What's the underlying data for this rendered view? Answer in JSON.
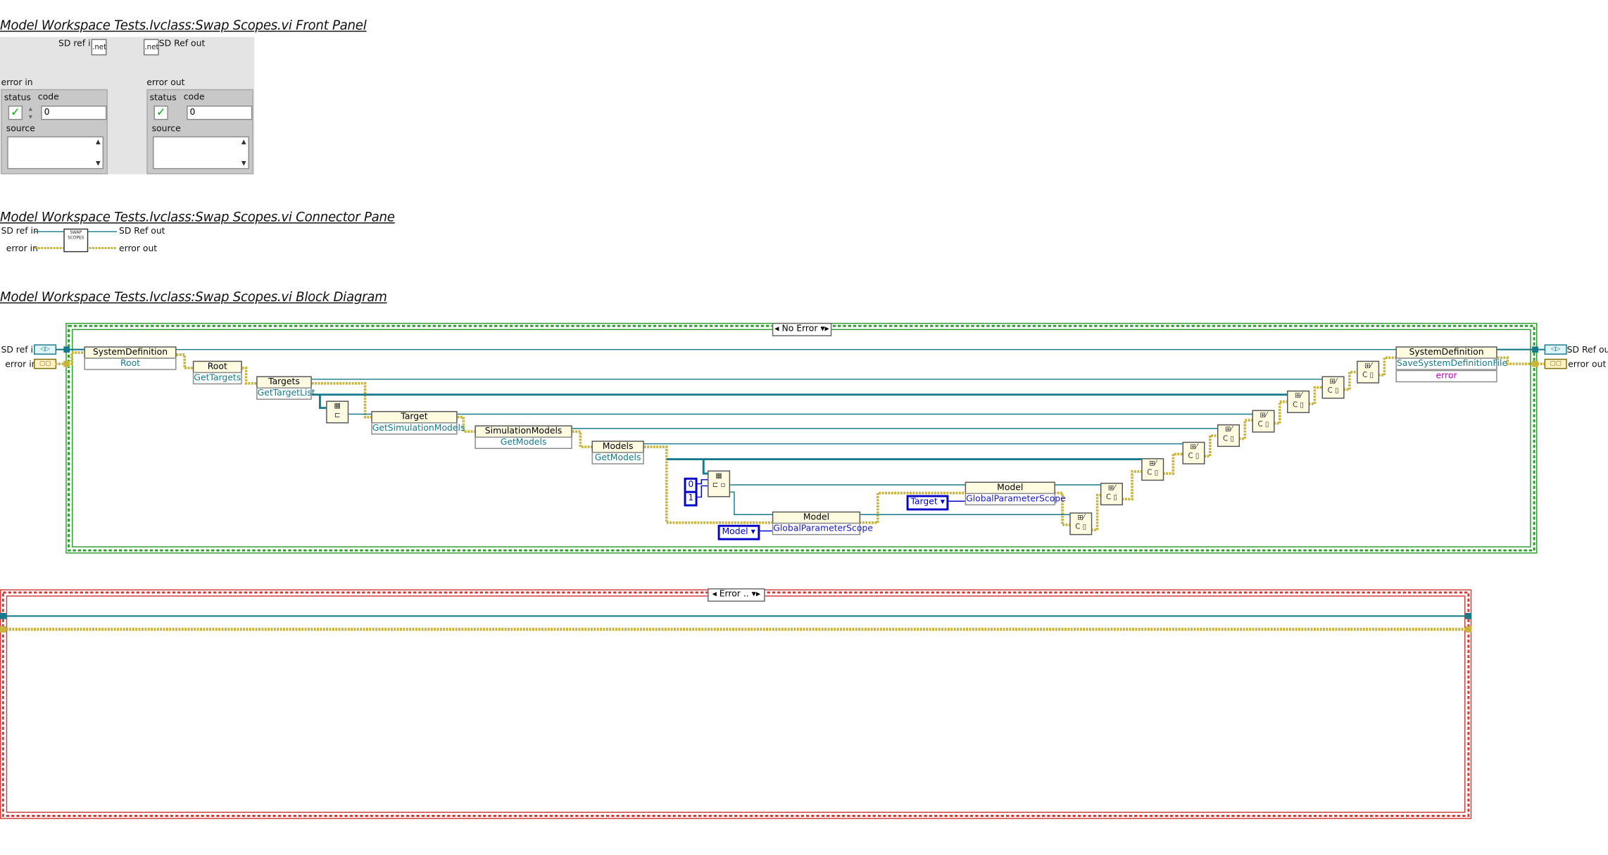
{
  "front_panel": {
    "title": "Model Workspace Tests.lvclass:Swap Scopes.vi Front Panel",
    "sd_ref_in_label": "SD ref in",
    "sd_ref_out_label": "SD Ref out",
    "net_icon_text": ".net",
    "error_in": {
      "label": "error in",
      "status_label": "status",
      "code_label": "code",
      "code_value": "0",
      "source_label": "source"
    },
    "error_out": {
      "label": "error out",
      "status_label": "status",
      "code_label": "code",
      "code_value": "0",
      "source_label": "source"
    }
  },
  "connector_pane": {
    "title": "Model Workspace Tests.lvclass:Swap Scopes.vi Connector Pane",
    "left_top": "SD ref in",
    "left_bottom": "error in",
    "right_top": "SD Ref out",
    "right_bottom": "error out",
    "icon_text": "SWAP SCOPES"
  },
  "block_diagram": {
    "title": "Model Workspace Tests.lvclass:Swap Scopes.vi Block Diagram",
    "case_selector": "No Error",
    "error_case_selector": "Error ..",
    "sd_ref_in": "SD ref in",
    "error_in": "error in",
    "sd_ref_out": "SD Ref out",
    "error_out": "error out",
    "nodes": {
      "system_definition_1": {
        "class": "SystemDefinition",
        "prop": "Root"
      },
      "root": {
        "class": "Root",
        "prop": "GetTargets"
      },
      "targets": {
        "class": "Targets",
        "prop": "GetTargetList"
      },
      "target": {
        "class": "Target",
        "prop": "GetSimulationModels"
      },
      "simulation_models": {
        "class": "SimulationModels",
        "prop": "GetModels"
      },
      "models": {
        "class": "Models",
        "prop": "GetModels"
      },
      "model_1": {
        "class": "Model",
        "prop": "GlobalParameterScope"
      },
      "model_2": {
        "class": "Model",
        "prop": "GlobalParameterScope"
      },
      "system_definition_2": {
        "class": "SystemDefinition",
        "prop1": "SaveSystemDefinitionFile",
        "prop2": "error"
      }
    },
    "constants": {
      "index_0": "0",
      "index_1": "1",
      "enum_model": "Model",
      "enum_target": "Target"
    },
    "close_ref_text": "C"
  },
  "colors": {
    "ref_wire": "#177a8a",
    "error_wire": "#c9b43a",
    "no_error_frame": "#2e9b2e",
    "error_frame": "#d23a3a"
  }
}
